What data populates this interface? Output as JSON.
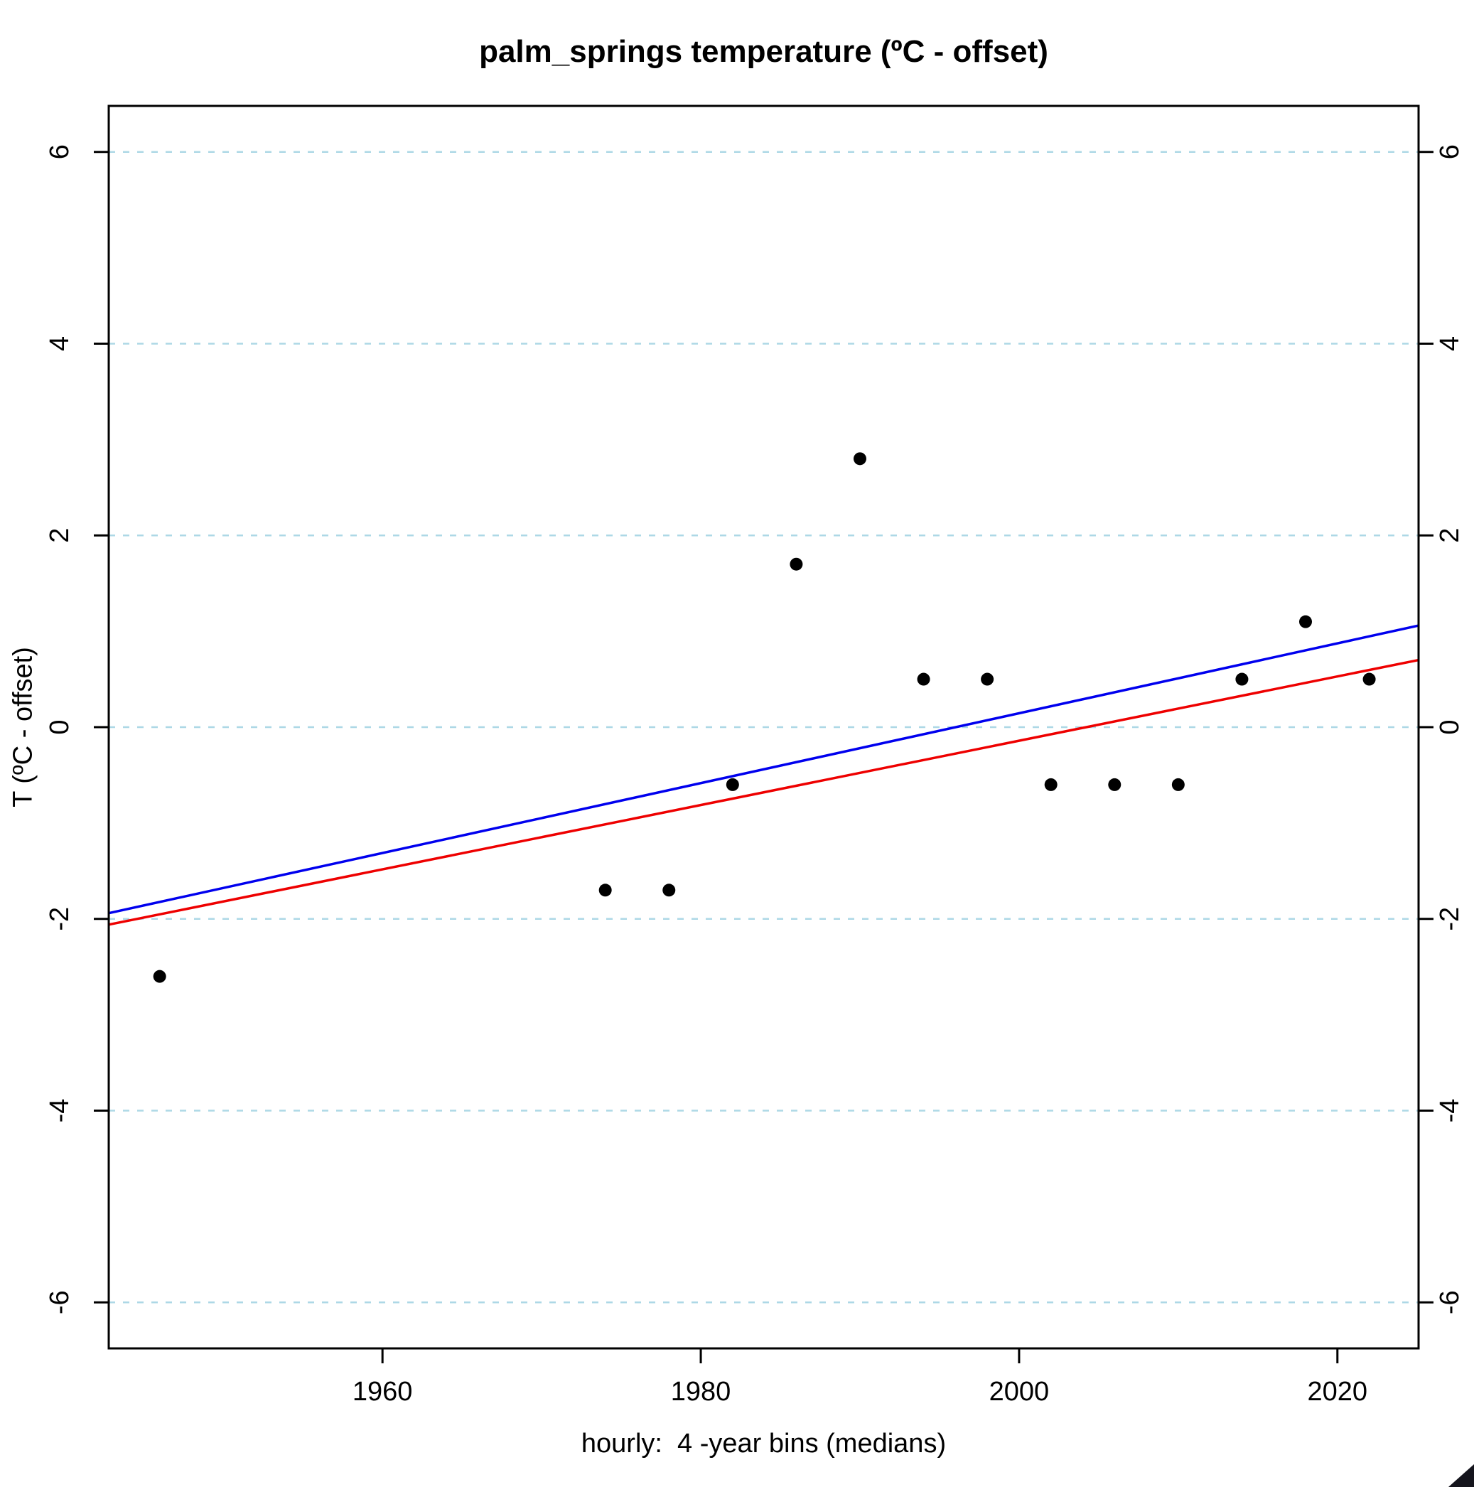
{
  "chart_data": {
    "type": "scatter",
    "title": "palm_springs temperature (ºC - offset)",
    "xlabel": "hourly:  4 -year bins (medians)",
    "ylabel": "T (ºC - offset)",
    "xlim": [
      1942.8,
      2025.1
    ],
    "ylim": [
      -6.48,
      6.48
    ],
    "x_ticks": [
      1960,
      1980,
      2000,
      2020
    ],
    "y_ticks": [
      -6,
      -4,
      -2,
      0,
      2,
      4,
      6
    ],
    "y_axis_sides": [
      "left",
      "right"
    ],
    "grid": {
      "axis": "y",
      "style": "dashed",
      "color": "#ADD8E6"
    },
    "points": [
      [
        1946,
        -2.6
      ],
      [
        1974,
        -1.7
      ],
      [
        1978,
        -1.7
      ],
      [
        1982,
        -0.6
      ],
      [
        1986,
        1.7
      ],
      [
        1990,
        2.8
      ],
      [
        1994,
        0.5
      ],
      [
        1998,
        0.5
      ],
      [
        2002,
        -0.6
      ],
      [
        2006,
        -0.6
      ],
      [
        2010,
        -0.6
      ],
      [
        2014,
        0.5
      ],
      [
        2018,
        1.1
      ],
      [
        2022,
        0.5
      ]
    ],
    "point_color": "#000000",
    "lines": [
      {
        "name": "trend-line-blue",
        "color": "#0000EE",
        "x1": 1942.8,
        "y1": -1.94,
        "x2": 2025.1,
        "y2": 1.06
      },
      {
        "name": "trend-line-red",
        "color": "#EE0000",
        "x1": 1942.8,
        "y1": -2.06,
        "x2": 2025.1,
        "y2": 0.7
      }
    ],
    "legend": null,
    "frame_color": "#000000"
  }
}
